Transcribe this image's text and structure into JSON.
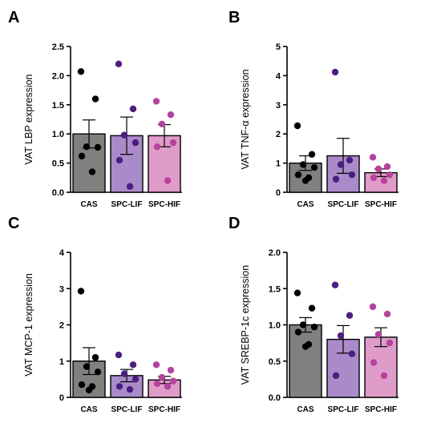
{
  "colors": {
    "bar_fills": [
      "#808080",
      "#a98bc9",
      "#e09cc8"
    ],
    "point_fills": [
      "#000000",
      "#4b1e7f",
      "#b5439c"
    ],
    "axis": "#000000"
  },
  "chart_data": [
    {
      "panel": "A",
      "type": "bar",
      "ylabel": "VAT LBP expression",
      "categories": [
        "CAS",
        "SPC-LIF",
        "SPC-HIF"
      ],
      "ylim": [
        0,
        2.5
      ],
      "yticks": [
        "0.0",
        "0.5",
        "1.0",
        "1.5",
        "2.0",
        "2.5"
      ],
      "means": [
        1.0,
        0.97,
        0.97
      ],
      "sem": [
        0.24,
        0.32,
        0.19
      ],
      "points": [
        [
          2.07,
          1.6,
          0.78,
          0.77,
          0.62,
          0.35
        ],
        [
          2.2,
          1.43,
          0.98,
          0.85,
          0.55,
          0.1
        ],
        [
          1.56,
          1.33,
          1.17,
          0.85,
          0.78,
          0.2
        ]
      ],
      "grid": false,
      "legend": "none"
    },
    {
      "panel": "B",
      "type": "bar",
      "ylabel": "VAT TNF-α expression",
      "categories": [
        "CAS",
        "SPC-LIF",
        "SPC-HIF"
      ],
      "ylim": [
        0,
        5
      ],
      "yticks": [
        "0",
        "1",
        "2",
        "3",
        "4",
        "5"
      ],
      "means": [
        1.0,
        1.25,
        0.67
      ],
      "sem": [
        0.25,
        0.6,
        0.13
      ],
      "points": [
        [
          2.28,
          1.3,
          0.95,
          0.85,
          0.6,
          0.5,
          0.4
        ],
        [
          4.12,
          1.1,
          0.95,
          0.6,
          0.45
        ],
        [
          1.2,
          0.88,
          0.8,
          0.6,
          0.5,
          0.4
        ]
      ],
      "grid": false,
      "legend": "none"
    },
    {
      "panel": "C",
      "type": "bar",
      "ylabel": "VAT MCP-1 expression",
      "categories": [
        "CAS",
        "SPC-LIF",
        "SPC-HIF"
      ],
      "ylim": [
        0,
        4
      ],
      "yticks": [
        "0",
        "1",
        "2",
        "3",
        "4"
      ],
      "means": [
        1.0,
        0.6,
        0.48
      ],
      "sem": [
        0.37,
        0.17,
        0.1
      ],
      "points": [
        [
          2.93,
          1.1,
          0.85,
          0.7,
          0.35,
          0.3,
          0.2
        ],
        [
          1.17,
          0.9,
          0.65,
          0.5,
          0.3,
          0.22
        ],
        [
          0.9,
          0.75,
          0.55,
          0.45,
          0.38,
          0.3
        ]
      ],
      "grid": false,
      "legend": "none"
    },
    {
      "panel": "D",
      "type": "bar",
      "ylabel": "VAT SREBP-1c expression",
      "categories": [
        "CAS",
        "SPC-LIF",
        "SPC-HIF"
      ],
      "ylim": [
        0,
        2.0
      ],
      "yticks": [
        "0.0",
        "0.5",
        "1.0",
        "1.5",
        "2.0"
      ],
      "means": [
        1.0,
        0.8,
        0.83
      ],
      "sem": [
        0.1,
        0.19,
        0.13
      ],
      "points": [
        [
          1.44,
          1.23,
          1.0,
          0.97,
          0.9,
          0.73,
          0.7
        ],
        [
          1.55,
          1.13,
          0.85,
          0.6,
          0.3
        ],
        [
          1.25,
          1.15,
          0.87,
          0.75,
          0.48,
          0.3
        ]
      ],
      "grid": false,
      "legend": "none"
    }
  ]
}
